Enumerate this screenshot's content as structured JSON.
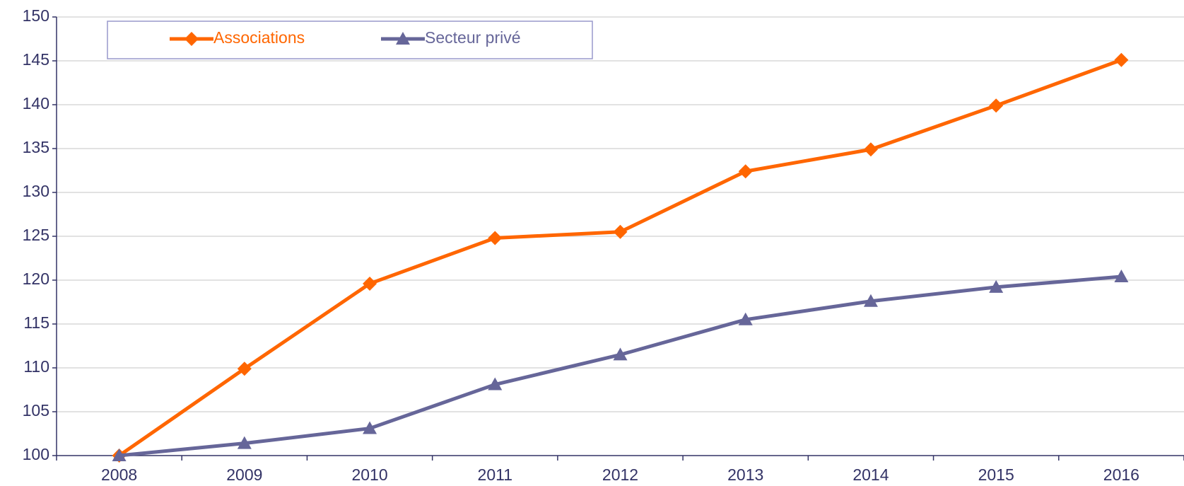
{
  "chart_data": {
    "type": "line",
    "categories": [
      "2008",
      "2009",
      "2010",
      "2011",
      "2012",
      "2013",
      "2014",
      "2015",
      "2016"
    ],
    "series": [
      {
        "name": "Associations",
        "color": "#ff6600",
        "marker": "diamond",
        "values": [
          100,
          109.9,
          119.6,
          124.8,
          125.5,
          132.4,
          134.9,
          139.9,
          145.1
        ]
      },
      {
        "name": "Secteur privé",
        "color": "#666699",
        "marker": "triangle",
        "values": [
          100,
          101.4,
          103.1,
          108.1,
          111.5,
          115.5,
          117.6,
          119.2,
          120.4
        ]
      }
    ],
    "ylim": [
      100,
      150
    ],
    "yticks": [
      100,
      105,
      110,
      115,
      120,
      125,
      130,
      135,
      140,
      145,
      150
    ],
    "grid": true,
    "legend": "upper left"
  }
}
